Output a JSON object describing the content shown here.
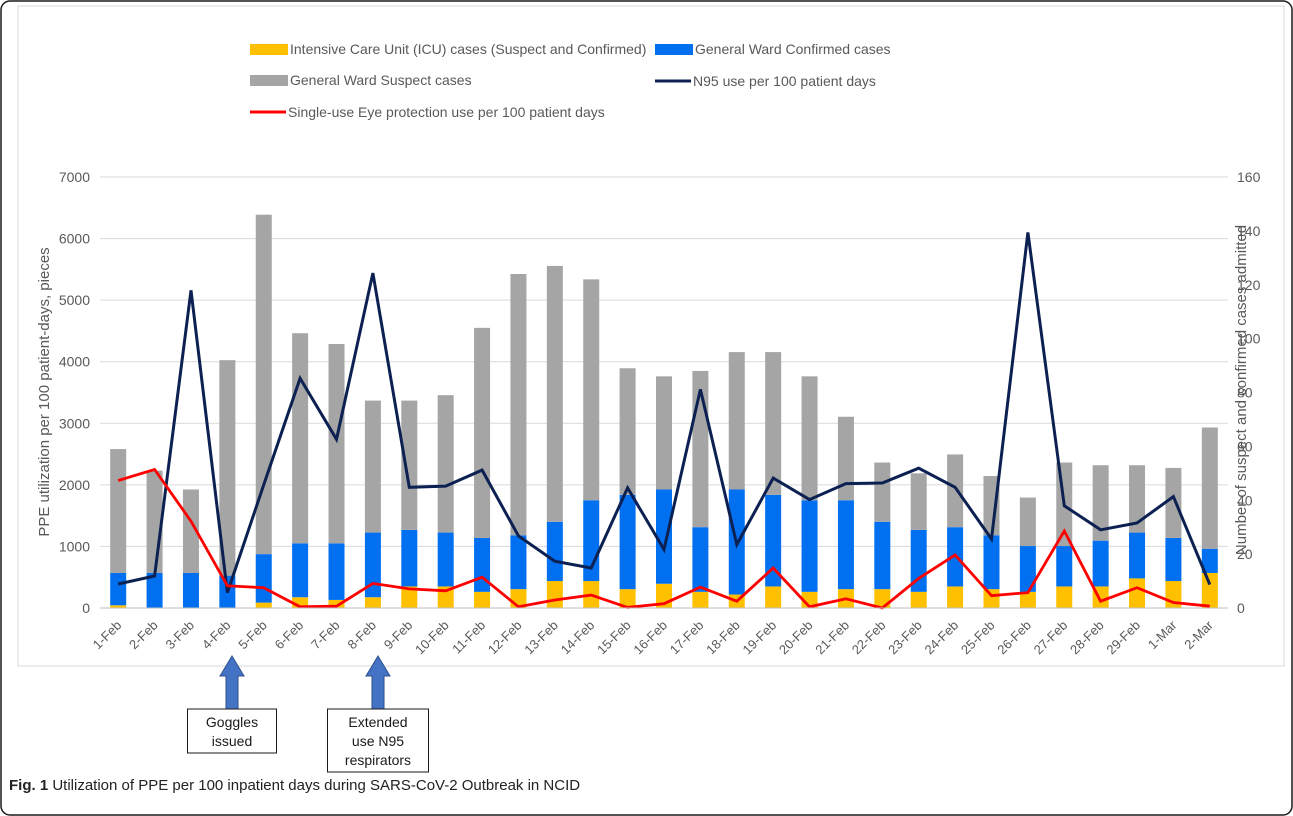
{
  "chart_data": {
    "type": "bar",
    "title": "",
    "ylabel": "PPE utilization per 100 patient-days, pieces",
    "y2label": "Number of suspect and confirmed cases admitted",
    "ylim": [
      0,
      7000
    ],
    "y2lim": [
      0,
      160
    ],
    "yticks": [
      "0",
      "1000",
      "2000",
      "3000",
      "4000",
      "5000",
      "6000",
      "7000"
    ],
    "y2ticks": [
      "0",
      "20",
      "40",
      "60",
      "80",
      "100",
      "120",
      "140",
      "160"
    ],
    "grid": true,
    "legend_position": "top",
    "categories": [
      "1-Feb",
      "2-Feb",
      "3-Feb",
      "4-Feb",
      "5-Feb",
      "6-Feb",
      "7-Feb",
      "8-Feb",
      "9-Feb",
      "10-Feb",
      "11-Feb",
      "12-Feb",
      "13-Feb",
      "14-Feb",
      "15-Feb",
      "16-Feb",
      "17-Feb",
      "18-Feb",
      "19-Feb",
      "20-Feb",
      "21-Feb",
      "22-Feb",
      "23-Feb",
      "24-Feb",
      "25-Feb",
      "26-Feb",
      "27-Feb",
      "28-Feb",
      "29-Feb",
      "1-Mar",
      "2-Mar"
    ],
    "bar_series": [
      {
        "name": "Intensive Care Unit (ICU) cases (Suspect and Confirmed)",
        "color": "#FFC000",
        "axis": "right",
        "values": [
          1,
          0,
          0,
          0,
          2,
          4,
          3,
          4,
          8,
          8,
          6,
          7,
          10,
          10,
          7,
          9,
          6,
          5,
          8,
          6,
          7,
          7,
          6,
          8,
          7,
          6,
          8,
          8,
          11,
          10,
          13
        ]
      },
      {
        "name": "General Ward Confirmed cases",
        "color": "#0070F0",
        "axis": "right",
        "values": [
          12,
          13,
          13,
          12,
          18,
          20,
          21,
          24,
          21,
          20,
          20,
          20,
          22,
          30,
          35,
          35,
          24,
          39,
          34,
          34,
          33,
          25,
          23,
          22,
          20,
          17,
          15,
          17,
          17,
          16,
          9
        ]
      },
      {
        "name": "General Ward Suspect cases",
        "color": "#A5A5A5",
        "axis": "right",
        "values": [
          46,
          38,
          31,
          80,
          126,
          78,
          74,
          49,
          48,
          51,
          78,
          97,
          95,
          82,
          47,
          42,
          58,
          51,
          53,
          46,
          31,
          22,
          21,
          27,
          22,
          18,
          31,
          28,
          25,
          26,
          45
        ]
      }
    ],
    "line_series": [
      {
        "name": "N95 use per 100 patient days",
        "color": "#0C2152",
        "axis": "left",
        "values": [
          390,
          520,
          5160,
          250,
          2000,
          3730,
          2740,
          5440,
          1960,
          1980,
          2240,
          1170,
          760,
          650,
          1950,
          950,
          3550,
          1030,
          2110,
          1760,
          2020,
          2030,
          2270,
          1960,
          1120,
          6100,
          1660,
          1270,
          1380,
          1810,
          380
        ]
      },
      {
        "name": "Single-use Eye protection use per 100 patient days",
        "color": "#FF0000",
        "axis": "left",
        "values": [
          2070,
          2250,
          1410,
          360,
          330,
          20,
          30,
          400,
          310,
          280,
          500,
          20,
          130,
          210,
          10,
          70,
          340,
          110,
          650,
          20,
          150,
          0,
          480,
          860,
          200,
          250,
          1250,
          110,
          330,
          90,
          30
        ]
      }
    ],
    "legend": [
      {
        "label": "Intensive Care Unit (ICU) cases (Suspect and Confirmed)",
        "kind": "bar",
        "color": "#FFC000"
      },
      {
        "label": "General Ward Confirmed cases",
        "kind": "bar",
        "color": "#0070F0"
      },
      {
        "label": "General Ward Suspect cases",
        "kind": "bar",
        "color": "#A5A5A5"
      },
      {
        "label": "N95 use per 100 patient days",
        "kind": "line",
        "color": "#0C2152"
      },
      {
        "label": "Single-use Eye protection use per 100 patient days",
        "kind": "line",
        "color": "#FF0000"
      }
    ],
    "annotations": [
      {
        "category": "4-Feb",
        "lines": [
          "Goggles",
          "issued"
        ]
      },
      {
        "category": "8-Feb",
        "lines": [
          "Extended",
          "use N95",
          "respirators"
        ]
      }
    ]
  },
  "caption": {
    "label": "Fig. 1",
    "text": " Utilization of PPE per 100 inpatient days during SARS-CoV-2 Outbreak in NCID"
  }
}
